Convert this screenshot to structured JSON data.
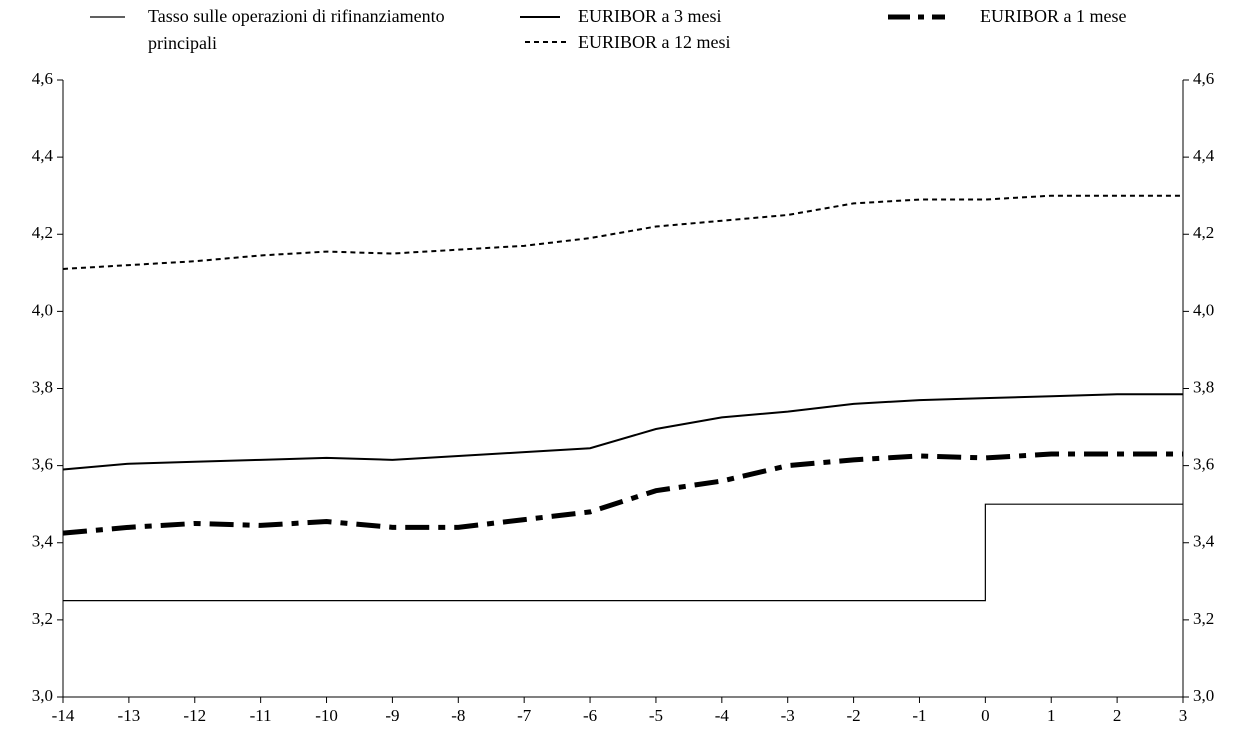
{
  "chart_data": {
    "type": "line",
    "x": [
      -14,
      -13,
      -12,
      -11,
      -10,
      -9,
      -8,
      -7,
      -6,
      -5,
      -4,
      -3,
      -2,
      -1,
      0,
      1,
      2,
      3
    ],
    "xlim": [
      -14,
      3
    ],
    "xticks": [
      -14,
      -13,
      -12,
      -11,
      -10,
      -9,
      -8,
      -7,
      -6,
      -5,
      -4,
      -3,
      -2,
      -1,
      0,
      1,
      2,
      3
    ],
    "ylim": [
      3.0,
      4.6
    ],
    "yticks": [
      {
        "value": 3.0,
        "label": "3,0"
      },
      {
        "value": 3.2,
        "label": "3,2"
      },
      {
        "value": 3.4,
        "label": "3,4"
      },
      {
        "value": 3.6,
        "label": "3,6"
      },
      {
        "value": 3.8,
        "label": "3,8"
      },
      {
        "value": 4.0,
        "label": "4,0"
      },
      {
        "value": 4.2,
        "label": "4,2"
      },
      {
        "value": 4.4,
        "label": "4,4"
      },
      {
        "value": 4.6,
        "label": "4,6"
      }
    ],
    "y2lim": [
      3.0,
      4.6
    ],
    "y2ticks": [
      {
        "value": 3.0,
        "label": "3,0"
      },
      {
        "value": 3.2,
        "label": "3,2"
      },
      {
        "value": 3.4,
        "label": "3,4"
      },
      {
        "value": 3.6,
        "label": "3,6"
      },
      {
        "value": 3.8,
        "label": "3,8"
      },
      {
        "value": 4.0,
        "label": "4,0"
      },
      {
        "value": 4.2,
        "label": "4,2"
      },
      {
        "value": 4.4,
        "label": "4,4"
      },
      {
        "value": 4.6,
        "label": "4,6"
      }
    ],
    "series": [
      {
        "name": "Tasso sulle operazioni di rifinanziamento principali",
        "color": "#000000",
        "x": [
          -14,
          0,
          0,
          3
        ],
        "values": [
          3.25,
          3.25,
          3.5,
          3.5
        ]
      },
      {
        "name": "EURIBOR a 3 mesi",
        "color": "#000000",
        "values": [
          3.59,
          3.605,
          3.61,
          3.615,
          3.62,
          3.615,
          3.625,
          3.635,
          3.645,
          3.695,
          3.725,
          3.74,
          3.76,
          3.77,
          3.775,
          3.78,
          3.785,
          3.785
        ]
      },
      {
        "name": "EURIBOR a 1 mese",
        "color": "#000000",
        "values": [
          3.425,
          3.44,
          3.45,
          3.445,
          3.455,
          3.44,
          3.44,
          3.46,
          3.48,
          3.535,
          3.56,
          3.6,
          3.615,
          3.625,
          3.62,
          3.63,
          3.63,
          3.63
        ]
      },
      {
        "name": "EURIBOR a 12 mesi",
        "color": "#000000",
        "values": [
          4.11,
          4.12,
          4.13,
          4.145,
          4.155,
          4.15,
          4.16,
          4.17,
          4.19,
          4.22,
          4.235,
          4.25,
          4.28,
          4.29,
          4.29,
          4.3,
          4.3,
          4.3
        ]
      }
    ]
  }
}
